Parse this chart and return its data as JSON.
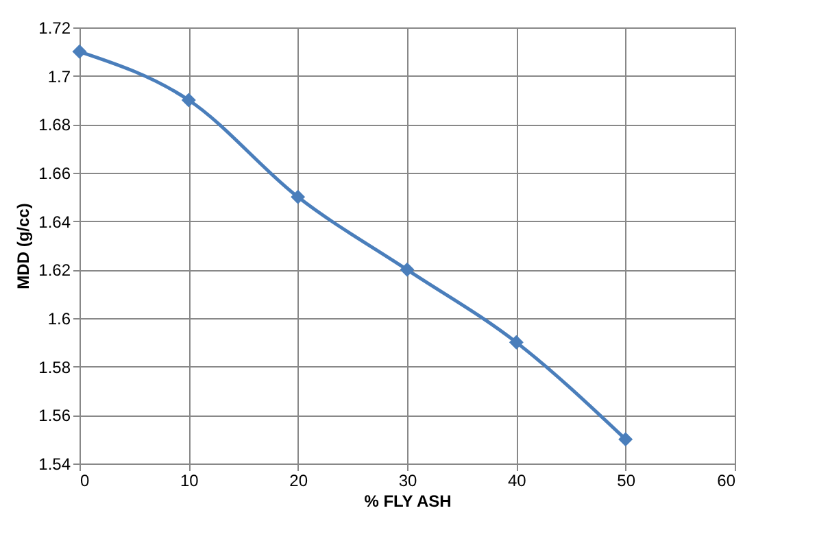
{
  "chart_data": {
    "type": "line",
    "xlabel": "% FLY ASH",
    "ylabel": "MDD (g/cc)",
    "x": [
      0,
      10,
      20,
      30,
      40,
      50
    ],
    "series": [
      {
        "color": "#4a7ebb",
        "values": [
          1.71,
          1.69,
          1.65,
          1.62,
          1.59,
          1.55
        ]
      }
    ],
    "xlim": [
      0,
      60
    ],
    "xticks": [
      0,
      10,
      20,
      30,
      40,
      50,
      60
    ],
    "ylim": [
      1.54,
      1.72
    ],
    "yticks": [
      1.54,
      1.56,
      1.58,
      1.6,
      1.62,
      1.64,
      1.66,
      1.68,
      1.7,
      1.72
    ],
    "grid": true,
    "marker": "diamond",
    "line_style": "solid"
  }
}
